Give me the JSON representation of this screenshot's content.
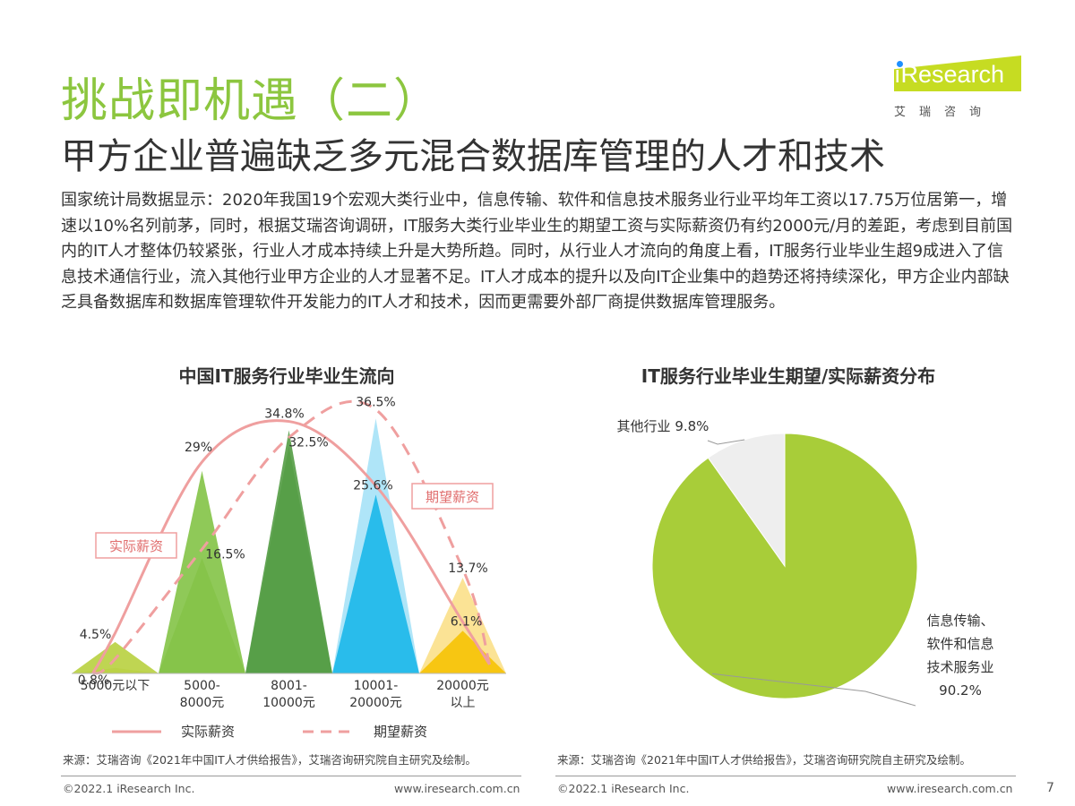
{
  "header": {
    "title": "挑战即机遇（二）",
    "subtitle": "甲方企业普遍缺乏多元混合数据库管理的人才和技术"
  },
  "logo": {
    "name": "iResearch",
    "name_rest": "Research",
    "cn": "艾瑞咨询"
  },
  "body_text": "国家统计局数据显示：2020年我国19个宏观大类行业中，信息传输、软件和信息技术服务业行业平均年工资以17.75万位居第一，增速以10%名列前茅，同时，根据艾瑞咨询调研，IT服务大类行业毕业生的期望工资与实际薪资仍有约2000元/月的差距，考虑到目前国内的IT人才整体仍较紧张，行业人才成本持续上升是大势所趋。同时，从行业人才流向的角度上看，IT服务行业毕业生超9成进入了信息技术通信行业，流入其他行业甲方企业的人才显著不足。IT人才成本的提升以及向IT企业集中的趋势还将持续深化，甲方企业内部缺乏具备数据库和数据库管理软件开发能力的IT人才和技术，因而更需要外部厂商提供数据库管理服务。",
  "chart_data": [
    {
      "type": "area",
      "title": "中国IT服务行业毕业生流向",
      "categories": [
        [
          "5000元以下"
        ],
        [
          "5000-",
          "8000元"
        ],
        [
          "8001-",
          "10000元"
        ],
        [
          "10001-",
          "20000元"
        ],
        [
          "20000元",
          "以上"
        ]
      ],
      "series": [
        {
          "name": "实际薪资",
          "values": [
            4.5,
            29,
            34.8,
            25.6,
            6.1
          ],
          "labels": [
            "4.5%",
            "29%",
            "34.8%",
            "25.6%",
            "6.1%"
          ],
          "line_style": "solid"
        },
        {
          "name": "期望薪资",
          "values": [
            0.8,
            16.5,
            32.5,
            36.5,
            13.7
          ],
          "labels": [
            "0.8%",
            "16.5%",
            "32.5%",
            "36.5%",
            "13.7%"
          ],
          "line_style": "dashed"
        }
      ],
      "colors": {
        "actual": [
          "#b6cf3a",
          "#7fc241",
          "#4f9a3f",
          "#17b6e8",
          "#f6c200"
        ],
        "expected": [
          "#d6e49a",
          "#a9cc80",
          "#8cb980",
          "#a6e2f7",
          "#fbe08a"
        ],
        "actual_line": "#ef9f9f",
        "expected_line": "#ef9f9f"
      },
      "callouts": {
        "actual": "实际薪资",
        "expected": "期望薪资"
      },
      "legend": {
        "position": "bottom",
        "items": [
          "实际薪资",
          "期望薪资"
        ]
      }
    },
    {
      "type": "pie",
      "title": "IT服务行业毕业生期望/实际薪资分布",
      "slices": [
        {
          "label_lines": [
            "信息传输、",
            "软件和信息",
            "技术服务业",
            "90.2%"
          ],
          "value": 90.2,
          "color": "#a8cd39"
        },
        {
          "label_lines": [
            "其他行业  9.8%"
          ],
          "value": 9.8,
          "color": "#eeeeee"
        }
      ]
    }
  ],
  "sources": {
    "left": "来源：艾瑞咨询《2021年中国IT人才供给报告》，艾瑞咨询研究院自主研究及绘制。",
    "right": "来源：艾瑞咨询《2021年中国IT人才供给报告》，艾瑞咨询研究院自主研究及绘制。"
  },
  "footer": {
    "copyright": "©2022.1 iResearch Inc.",
    "url": "www.iresearch.com.cn",
    "page": "7"
  }
}
